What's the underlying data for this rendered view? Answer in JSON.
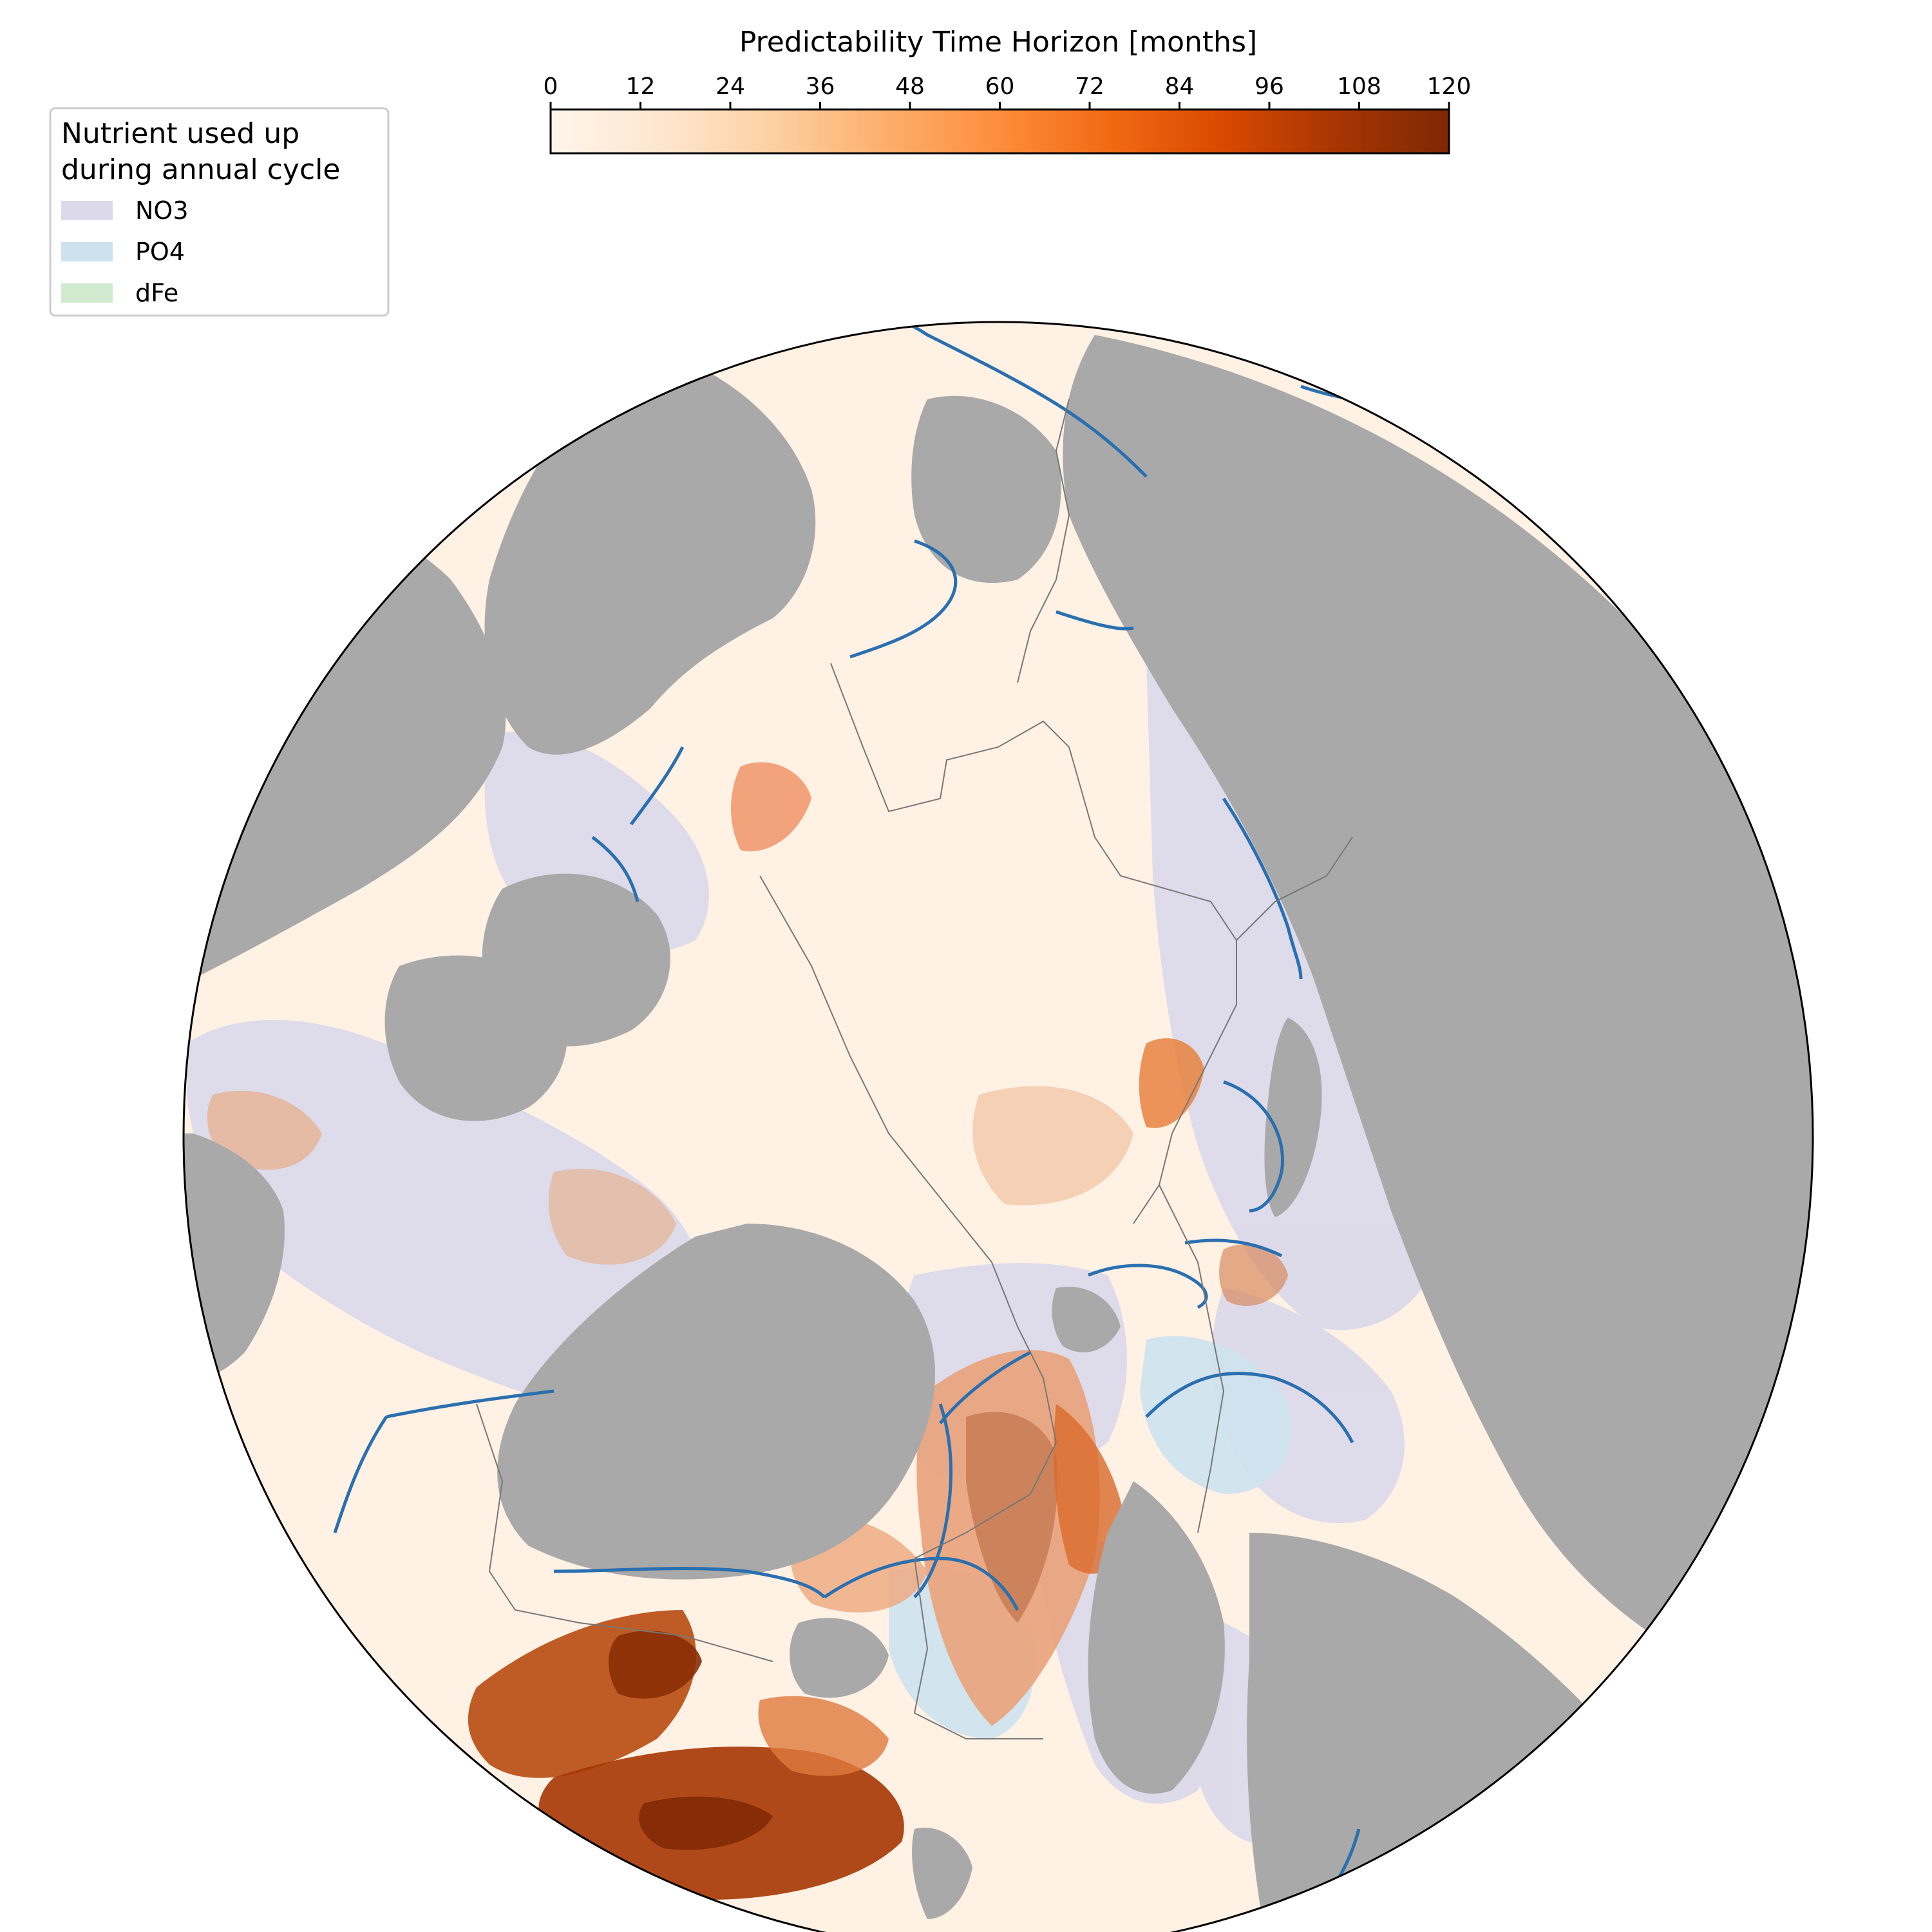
{
  "colorbar": {
    "title": "Predictability Time Horizon [months]",
    "ticks": [
      "0",
      "12",
      "24",
      "36",
      "48",
      "60",
      "72",
      "84",
      "96",
      "108",
      "120"
    ],
    "range": [
      0,
      120
    ],
    "colormap": [
      "#fff5eb",
      "#fee6ce",
      "#fdd0a2",
      "#fdae6b",
      "#fd8d3c",
      "#f16913",
      "#d94801",
      "#a63603",
      "#7f2704"
    ]
  },
  "legend": {
    "title_line1": "Nutrient used up",
    "title_line2": "during annual cycle",
    "items": [
      {
        "label": "NO3",
        "color": "#dcd9ea"
      },
      {
        "label": "PO4",
        "color": "#cde2ee"
      },
      {
        "label": "dFe",
        "color": "#d2ebd0"
      }
    ]
  },
  "map": {
    "projection": "north-polar-stereographic",
    "land_color": "#a9a9a9",
    "ocean_base_color": "#fff1e4",
    "boundary_line_color": "#2a6fb0",
    "region_border_color": "#777777"
  }
}
